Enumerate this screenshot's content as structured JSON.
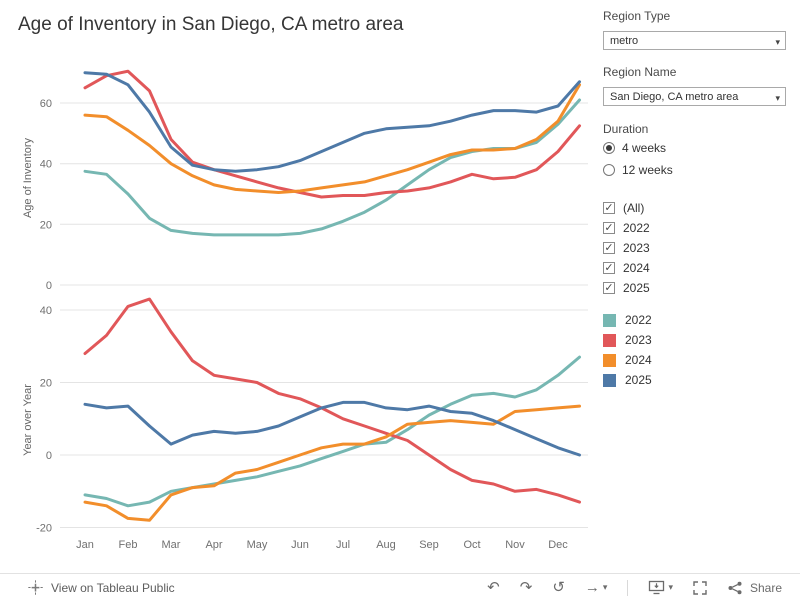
{
  "title": "Age of Inventory in San Diego, CA metro area",
  "icons": {
    "caret": "▾",
    "undo": "↶",
    "redo": "↷",
    "replay": "↺",
    "forward": "→",
    "check": "✓"
  },
  "filters": {
    "region_type": {
      "label": "Region Type",
      "value": "metro"
    },
    "region_name": {
      "label": "Region Name",
      "value": "San Diego, CA metro area"
    },
    "duration": {
      "label": "Duration",
      "options": [
        {
          "label": "4 weeks",
          "selected": true
        },
        {
          "label": "12 weeks",
          "selected": false
        }
      ]
    },
    "years": {
      "options": [
        {
          "label": "(All)",
          "checked": true
        },
        {
          "label": "2022",
          "checked": true
        },
        {
          "label": "2023",
          "checked": true
        },
        {
          "label": "2024",
          "checked": true
        },
        {
          "label": "2025",
          "checked": true
        }
      ]
    }
  },
  "legend": {
    "items": [
      {
        "label": "2022",
        "color": "#76b7b2"
      },
      {
        "label": "2023",
        "color": "#e15759"
      },
      {
        "label": "2024",
        "color": "#f28e2b"
      },
      {
        "label": "2025",
        "color": "#4e79a7"
      }
    ]
  },
  "footer": {
    "view_text": "View on Tableau Public",
    "share_label": "Share"
  },
  "chart_data": [
    {
      "type": "line",
      "title": "",
      "xlabel": "",
      "ylabel": "Age of Inventory",
      "ylim": [
        0,
        75
      ],
      "yticks": [
        0,
        20,
        40,
        60
      ],
      "grid": true,
      "categories": [
        "Jan",
        "Feb",
        "Mar",
        "Apr",
        "May",
        "Jun",
        "Jul",
        "Aug",
        "Sep",
        "Oct",
        "Nov",
        "Dec"
      ],
      "x": [
        0,
        0.5,
        1,
        1.5,
        2,
        2.5,
        3,
        3.5,
        4,
        4.5,
        5,
        5.5,
        6,
        6.5,
        7,
        7.5,
        8,
        8.5,
        9,
        9.5,
        10,
        10.5,
        11,
        11.5
      ],
      "series": [
        {
          "name": "2022",
          "color": "#76b7b2",
          "values": [
            37.5,
            36.5,
            30,
            22,
            18,
            17,
            16.5,
            16.5,
            16.5,
            16.5,
            17,
            18.5,
            21,
            24,
            28,
            33,
            38,
            42,
            44,
            45,
            45,
            47,
            53,
            61
          ]
        },
        {
          "name": "2023",
          "color": "#e15759",
          "values": [
            65,
            69,
            70.5,
            64,
            48,
            40.5,
            38,
            36,
            34,
            32,
            30.5,
            29,
            29.5,
            29.5,
            30.5,
            31,
            32,
            34,
            36.5,
            35,
            35.5,
            38,
            44,
            52.5
          ]
        },
        {
          "name": "2024",
          "color": "#f28e2b",
          "values": [
            56,
            55.5,
            51,
            46,
            40,
            36,
            33,
            31.5,
            31,
            30.5,
            31,
            32,
            33,
            34,
            36,
            38,
            40.5,
            43,
            44.5,
            44.5,
            45,
            48,
            54,
            66
          ]
        },
        {
          "name": "2025",
          "color": "#4e79a7",
          "values": [
            70,
            69.5,
            66,
            57,
            45.5,
            39.5,
            38,
            37.5,
            38,
            39,
            41,
            44,
            47,
            50,
            51.5,
            52,
            52.5,
            54,
            56,
            57.5,
            57.5,
            57,
            59,
            67
          ]
        }
      ]
    },
    {
      "type": "line",
      "title": "",
      "xlabel": "",
      "ylabel": "Year over Year",
      "ylim": [
        -22,
        46
      ],
      "yticks": [
        -20,
        0,
        20,
        40
      ],
      "grid": true,
      "categories": [
        "Jan",
        "Feb",
        "Mar",
        "Apr",
        "May",
        "Jun",
        "Jul",
        "Aug",
        "Sep",
        "Oct",
        "Nov",
        "Dec"
      ],
      "x": [
        0,
        0.5,
        1,
        1.5,
        2,
        2.5,
        3,
        3.5,
        4,
        4.5,
        5,
        5.5,
        6,
        6.5,
        7,
        7.5,
        8,
        8.5,
        9,
        9.5,
        10,
        10.5,
        11,
        11.5
      ],
      "series": [
        {
          "name": "2022",
          "color": "#76b7b2",
          "values": [
            -11,
            -12,
            -14,
            -13,
            -10,
            -9,
            -8,
            -7,
            -6,
            -4.5,
            -3,
            -1,
            1,
            3,
            3.5,
            7,
            11,
            14,
            16.5,
            17,
            16,
            18,
            22,
            27
          ]
        },
        {
          "name": "2023",
          "color": "#e15759",
          "values": [
            28,
            33,
            41,
            43,
            34,
            26,
            22,
            21,
            20,
            17,
            15.5,
            13,
            10,
            8,
            6,
            4,
            0,
            -4,
            -7,
            -8,
            -10,
            -9.5,
            -11,
            -13
          ]
        },
        {
          "name": "2024",
          "color": "#f28e2b",
          "values": [
            -13,
            -14,
            -17.5,
            -18,
            -11,
            -9,
            -8.5,
            -5,
            -4,
            -2,
            0,
            2,
            3,
            3,
            5,
            8.5,
            9,
            9.5,
            9,
            8.5,
            12,
            12.5,
            13,
            13.5
          ]
        },
        {
          "name": "2025",
          "color": "#4e79a7",
          "values": [
            14,
            13,
            13.5,
            8,
            3,
            5.5,
            6.5,
            6,
            6.5,
            8,
            10.5,
            13,
            14.5,
            14.5,
            13,
            12.5,
            13.5,
            12,
            11.5,
            9.5,
            7,
            4.5,
            2,
            0
          ]
        }
      ]
    }
  ]
}
